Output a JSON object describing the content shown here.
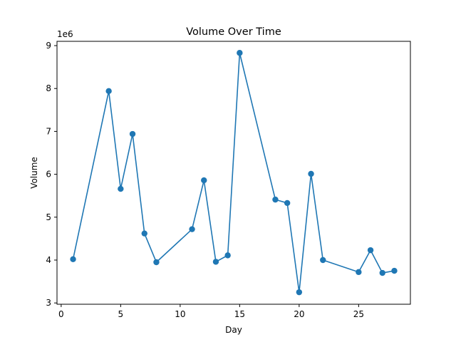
{
  "chart_data": {
    "type": "line",
    "title": "Volume Over Time",
    "xlabel": "Day",
    "ylabel": "Volume",
    "y_offset_label": "1e6",
    "xlim": [
      -0.35,
      29.35
    ],
    "ylim": [
      2970000,
      9100000
    ],
    "x_ticks": [
      0,
      5,
      10,
      15,
      20,
      25
    ],
    "y_ticks": [
      3,
      4,
      5,
      6,
      7,
      8,
      9
    ],
    "y_tick_scale": 1000000,
    "grid": false,
    "legend": "none",
    "series": [
      {
        "color": "#1f77b4",
        "marker": "circle",
        "x": [
          1,
          4,
          5,
          6,
          7,
          8,
          11,
          12,
          13,
          14,
          15,
          18,
          19,
          20,
          21,
          22,
          25,
          26,
          27,
          28
        ],
        "values": [
          4020000,
          7940000,
          5660000,
          6940000,
          4620000,
          3950000,
          4720000,
          5860000,
          3960000,
          4110000,
          8830000,
          5410000,
          5330000,
          3250000,
          6010000,
          4000000,
          3720000,
          4230000,
          3700000,
          3750000
        ]
      }
    ]
  }
}
